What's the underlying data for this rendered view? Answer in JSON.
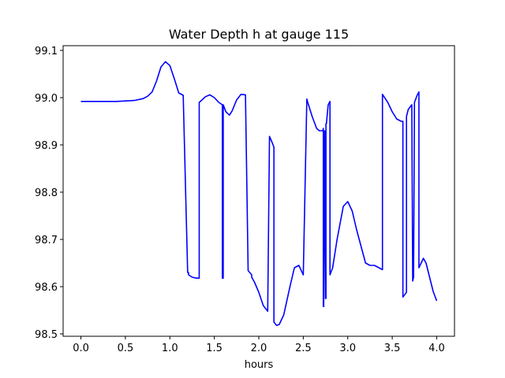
{
  "chart_data": {
    "type": "line",
    "title": "Water Depth h at gauge 115",
    "xlabel": "hours",
    "ylabel": "",
    "xlim": [
      -0.2,
      4.2
    ],
    "ylim": [
      98.495,
      99.11
    ],
    "xticks": [
      0.0,
      0.5,
      1.0,
      1.5,
      2.0,
      2.5,
      3.0,
      3.5,
      4.0
    ],
    "xtick_labels": [
      "0.0",
      "0.5",
      "1.0",
      "1.5",
      "2.0",
      "2.5",
      "3.0",
      "3.5",
      "4.0"
    ],
    "yticks": [
      98.5,
      98.6,
      98.7,
      98.8,
      98.9,
      99.0,
      99.1
    ],
    "ytick_labels": [
      "98.5",
      "98.6",
      "98.7",
      "98.8",
      "98.9",
      "99.0",
      "99.1"
    ],
    "grid": false,
    "series": [
      {
        "color": "#0000ff",
        "x": [
          0.0,
          0.2,
          0.4,
          0.6,
          0.7,
          0.75,
          0.8,
          0.85,
          0.9,
          0.95,
          1.0,
          1.05,
          1.1,
          1.15,
          1.2,
          1.21,
          1.21,
          1.25,
          1.3,
          1.33,
          1.33,
          1.36,
          1.4,
          1.45,
          1.5,
          1.55,
          1.59,
          1.59,
          1.6,
          1.6,
          1.63,
          1.67,
          1.7,
          1.75,
          1.8,
          1.85,
          1.88,
          1.92,
          1.92,
          1.95,
          2.0,
          2.05,
          2.1,
          2.12,
          2.12,
          2.15,
          2.17,
          2.17,
          2.2,
          2.23,
          2.28,
          2.35,
          2.4,
          2.45,
          2.5,
          2.54,
          2.55,
          2.55,
          2.6,
          2.65,
          2.68,
          2.72,
          2.725,
          2.725,
          2.73,
          2.74,
          2.74,
          2.75,
          2.755,
          2.755,
          2.76,
          2.78,
          2.8,
          2.8,
          2.83,
          2.88,
          2.95,
          3.0,
          3.05,
          3.1,
          3.2,
          3.25,
          3.3,
          3.35,
          3.39,
          3.39,
          3.45,
          3.5,
          3.55,
          3.6,
          3.62,
          3.62,
          3.66,
          3.66,
          3.68,
          3.72,
          3.73,
          3.73,
          3.74,
          3.75,
          3.78,
          3.8,
          3.8,
          3.85,
          3.88,
          3.92,
          3.96,
          4.0
        ],
        "y": [
          98.992,
          98.992,
          98.992,
          98.994,
          98.998,
          99.003,
          99.012,
          99.035,
          99.065,
          99.076,
          99.068,
          99.04,
          99.01,
          99.005,
          98.63,
          98.63,
          98.625,
          98.62,
          98.618,
          98.618,
          98.99,
          98.995,
          99.002,
          99.006,
          99.0,
          98.99,
          98.985,
          98.618,
          98.618,
          98.985,
          98.97,
          98.963,
          98.972,
          98.995,
          99.007,
          99.006,
          98.634,
          98.625,
          98.62,
          98.61,
          98.588,
          98.56,
          98.548,
          98.918,
          98.918,
          98.905,
          98.895,
          98.525,
          98.518,
          98.52,
          98.54,
          98.6,
          98.64,
          98.645,
          98.625,
          98.997,
          98.99,
          98.99,
          98.96,
          98.935,
          98.93,
          98.93,
          98.935,
          98.558,
          98.558,
          98.93,
          98.93,
          98.575,
          98.575,
          98.945,
          98.945,
          98.985,
          98.992,
          98.625,
          98.64,
          98.7,
          98.77,
          98.78,
          98.76,
          98.72,
          98.65,
          98.645,
          98.645,
          98.64,
          98.636,
          99.007,
          98.99,
          98.97,
          98.955,
          98.95,
          98.95,
          98.578,
          98.588,
          98.96,
          98.975,
          98.985,
          98.612,
          98.612,
          98.62,
          98.99,
          99.005,
          99.012,
          98.64,
          98.66,
          98.65,
          98.62,
          98.59,
          98.57
        ]
      }
    ]
  }
}
